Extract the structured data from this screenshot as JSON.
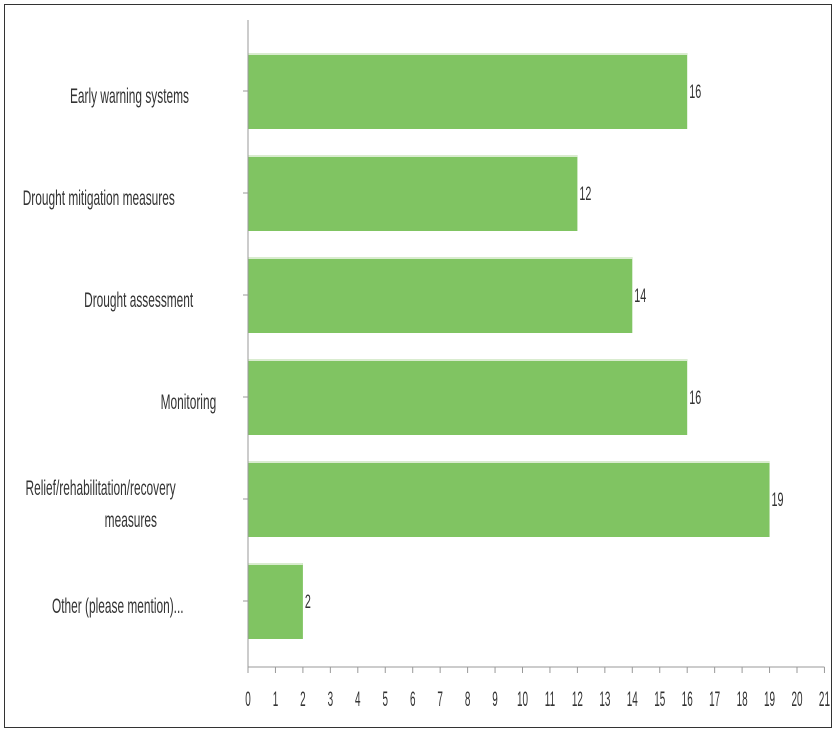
{
  "chart_data": {
    "type": "bar",
    "orientation": "horizontal",
    "categories": [
      "Early warning systems",
      "Drought mitigation measures",
      "Drought assessment",
      "Monitoring",
      "Relief/rehabilitation/recovery measures",
      "Other (please mention)..."
    ],
    "category_lines": [
      [
        "Early warning systems"
      ],
      [
        "Drought mitigation measures"
      ],
      [
        "Drought assessment"
      ],
      [
        "Monitoring"
      ],
      [
        "Relief/rehabilitation/recovery",
        "measures"
      ],
      [
        "Other (please mention)..."
      ]
    ],
    "values": [
      16,
      12,
      14,
      16,
      19,
      2
    ],
    "value_labels": [
      "16",
      "12",
      "14",
      "16",
      "19",
      "2"
    ],
    "xlim": [
      0,
      21
    ],
    "x_ticks": [
      "0",
      "1",
      "2",
      "3",
      "4",
      "5",
      "6",
      "7",
      "8",
      "9",
      "10",
      "11",
      "12",
      "13",
      "14",
      "15",
      "16",
      "17",
      "18",
      "19",
      "20",
      "21"
    ],
    "bar_color": "#80c462",
    "axis_color": "#999999",
    "text_color": "#333333",
    "grid": false,
    "legend": false
  }
}
